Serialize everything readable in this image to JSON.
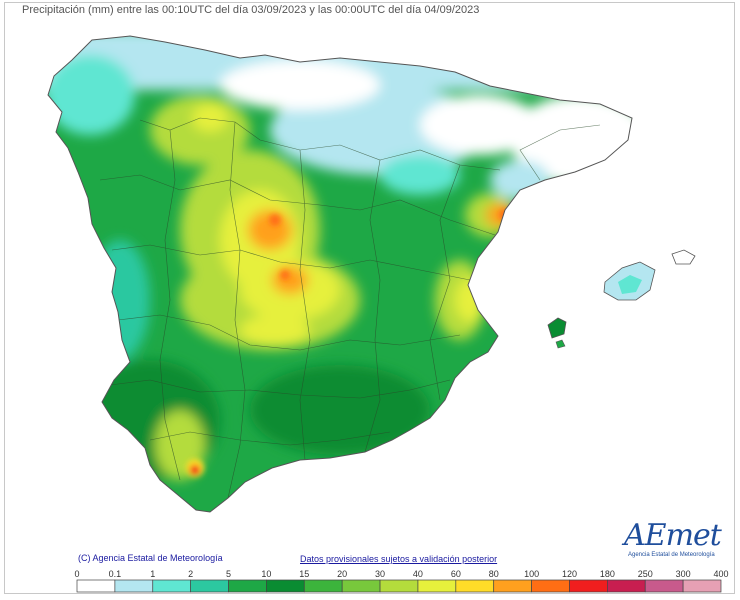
{
  "title": "Precipitación (mm) entre las 00:10UTC del día 03/09/2023 y las 00:00UTC del día 04/09/2023",
  "footer": {
    "copyright": "(C) Agencia Estatal de Meteorología",
    "provisional": "Datos provisionales sujetos a validación posterior"
  },
  "logo": {
    "text": "AEmet",
    "subtitle": "Agencia Estatal de Meteorología"
  },
  "legend": {
    "labels": [
      "0",
      "0.1",
      "1",
      "2",
      "5",
      "10",
      "15",
      "20",
      "30",
      "40",
      "60",
      "80",
      "100",
      "120",
      "180",
      "250",
      "300",
      "400"
    ],
    "colors": [
      "#ffffff",
      "#b4e6f0",
      "#5fe6d2",
      "#2cc8a0",
      "#1ea846",
      "#0a8c32",
      "#3cb43c",
      "#78c83c",
      "#b4dc3c",
      "#e6f03c",
      "#ffdc28",
      "#ffa01e",
      "#ff6e14",
      "#f01e1e",
      "#c81e50",
      "#c85a8c",
      "#e6a0b4"
    ]
  },
  "colors": {
    "sea": "#ffffff",
    "land_default": "#1ea846"
  }
}
